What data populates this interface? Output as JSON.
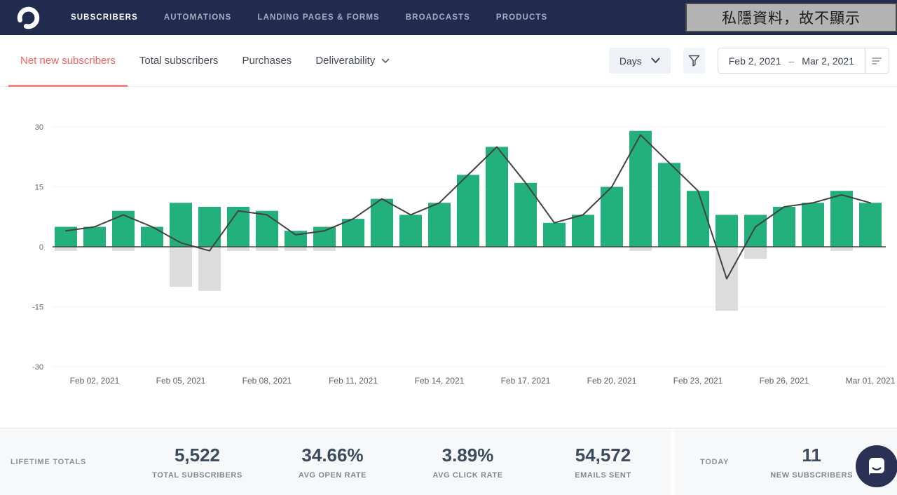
{
  "nav": {
    "items": [
      {
        "label": "SUBSCRIBERS",
        "active": true
      },
      {
        "label": "AUTOMATIONS",
        "active": false
      },
      {
        "label": "LANDING PAGES & FORMS",
        "active": false
      },
      {
        "label": "BROADCASTS",
        "active": false
      },
      {
        "label": "PRODUCTS",
        "active": false
      }
    ],
    "privacy_overlay": "私隱資料，故不顯示"
  },
  "tabs": [
    {
      "label": "Net new subscribers",
      "active": true
    },
    {
      "label": "Total subscribers",
      "active": false
    },
    {
      "label": "Purchases",
      "active": false
    },
    {
      "label": "Deliverability",
      "active": false,
      "has_dropdown": true
    }
  ],
  "controls": {
    "interval_label": "Days",
    "date_start": "Feb 2, 2021",
    "date_separator": "–",
    "date_end": "Mar 2, 2021"
  },
  "chart_data": {
    "type": "bar",
    "title": "Net new subscribers by day",
    "n_days": 29,
    "grid": true,
    "ylim": [
      -34,
      34
    ],
    "yticks": [
      30,
      15,
      0,
      -15,
      -30
    ],
    "x_ticks": [
      {
        "index": 1,
        "label": "Feb 02, 2021"
      },
      {
        "index": 4,
        "label": "Feb 05, 2021"
      },
      {
        "index": 7,
        "label": "Feb 08, 2021"
      },
      {
        "index": 10,
        "label": "Feb 11, 2021"
      },
      {
        "index": 13,
        "label": "Feb 14, 2021"
      },
      {
        "index": 16,
        "label": "Feb 17, 2021"
      },
      {
        "index": 19,
        "label": "Feb 20, 2021"
      },
      {
        "index": 22,
        "label": "Feb 23, 2021"
      },
      {
        "index": 25,
        "label": "Feb 26, 2021"
      },
      {
        "index": 28,
        "label": "Mar 01, 2021"
      }
    ],
    "series": [
      {
        "name": "new_subscribers",
        "type": "bar",
        "color": "#22b07d",
        "values": [
          5,
          5,
          9,
          5,
          11,
          10,
          10,
          9,
          4,
          5,
          7,
          12,
          8,
          11,
          18,
          25,
          16,
          6,
          8,
          15,
          29,
          21,
          14,
          8,
          8,
          10,
          11,
          14,
          11
        ]
      },
      {
        "name": "unsubscribed",
        "type": "bar",
        "color": "#dcdcdc",
        "values": [
          -1,
          0,
          -1,
          0,
          -10,
          -11,
          -1,
          -1,
          -1,
          -1,
          0,
          0,
          0,
          0,
          0,
          0,
          0,
          0,
          0,
          0,
          -1,
          0,
          0,
          -16,
          -3,
          0,
          0,
          -1,
          0
        ]
      },
      {
        "name": "net_new",
        "type": "line",
        "color": "#424242",
        "values": [
          4,
          5,
          8,
          5,
          1,
          -1,
          9,
          8,
          3,
          4,
          7,
          12,
          8,
          11,
          18,
          25,
          16,
          6,
          8,
          15,
          28,
          21,
          14,
          -8,
          5,
          10,
          11,
          13,
          11
        ]
      }
    ]
  },
  "footer": {
    "lifetime_label": "LIFETIME TOTALS",
    "lifetime_stats": [
      {
        "value": "5,522",
        "label": "TOTAL SUBSCRIBERS"
      },
      {
        "value": "34.66%",
        "label": "AVG OPEN RATE"
      },
      {
        "value": "3.89%",
        "label": "AVG CLICK RATE"
      },
      {
        "value": "54,572",
        "label": "EMAILS SENT"
      }
    ],
    "today_label": "TODAY",
    "today_stats": [
      {
        "value": "11",
        "label": "NEW SUBSCRIBERS"
      }
    ]
  },
  "colors": {
    "nav_background": "#212b4e",
    "accent_coral": "#fb5e5e",
    "bar_positive": "#22b07d",
    "bar_negative": "#dcdcdc",
    "net_line": "#424242",
    "stat_value": "#3c4c5e"
  }
}
